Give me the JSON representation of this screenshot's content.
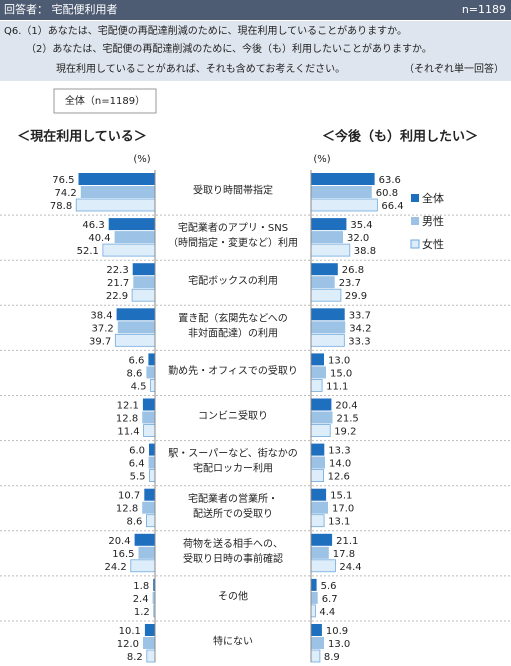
{
  "header": {
    "respondents": "回答者： 宅配便利用者",
    "n": "n=1189",
    "question": [
      "Q6.（1）あなたは、宅配便の再配達削減のために、現在利用していることがありますか。",
      "（2）あなたは、宅配便の再配達削減のために、今後（も）利用したいことがありますか。",
      "現在利用していることがあれば、それも含めてお考えください。"
    ],
    "note": "（それぞれ単一回答）",
    "base": "全体（n=1189）"
  },
  "chart_data": [
    {
      "type": "bar",
      "orientation": "horizontal",
      "direction": "left",
      "title": "＜現在利用している＞",
      "unit": "(%)",
      "xlim": [
        0,
        100
      ],
      "categories": [
        [
          "受取り時間帯指定"
        ],
        [
          "宅配業者のアプリ・SNS",
          "（時間指定・変更など）利用"
        ],
        [
          "宅配ボックスの利用"
        ],
        [
          "置き配（玄関先などへの",
          "非対面配達）の利用"
        ],
        [
          "勤め先・オフィスでの受取り"
        ],
        [
          "コンビニ受取り"
        ],
        [
          "駅・スーパーなど、街なかの",
          "宅配ロッカー利用"
        ],
        [
          "宅配業者の営業所・",
          "配送所での受取り"
        ],
        [
          "荷物を送る相手への、",
          "受取り日時の事前確認"
        ],
        [
          "その他"
        ],
        [
          "特にない"
        ]
      ],
      "series": [
        {
          "name": "全体",
          "color": "#1f6fbf",
          "values": [
            76.5,
            46.3,
            22.3,
            38.4,
            6.6,
            12.1,
            6.0,
            10.7,
            20.4,
            1.8,
            10.1
          ],
          "value_labels": [
            "76.5",
            "46.3",
            "22.3",
            "38.4",
            "6.6",
            "12.1",
            "6.0",
            "10.7",
            "20.4",
            "1.8",
            "10.1"
          ]
        },
        {
          "name": "男性",
          "color": "#9cc3e6",
          "values": [
            74.2,
            40.4,
            21.7,
            37.2,
            8.6,
            12.8,
            6.4,
            12.8,
            16.5,
            2.4,
            12.0
          ],
          "value_labels": [
            "74.2",
            "40.4",
            "21.7",
            "37.2",
            "8.6",
            "12.8",
            "6.4",
            "12.8",
            "16.5",
            "2.4",
            "12.0"
          ]
        },
        {
          "name": "女性",
          "color": "#ddeefa",
          "values": [
            78.8,
            52.1,
            22.9,
            39.7,
            4.5,
            11.4,
            5.5,
            8.6,
            24.2,
            1.2,
            8.2
          ],
          "value_labels": [
            "78.8",
            "52.1",
            "22.9",
            "39.7",
            "4.5",
            "11.4",
            "5.5",
            "8.6",
            "24.2",
            "1.2",
            "8.2"
          ]
        }
      ]
    },
    {
      "type": "bar",
      "orientation": "horizontal",
      "direction": "right",
      "title": "＜今後（も）利用したい＞",
      "unit": "(%)",
      "xlim": [
        0,
        100
      ],
      "series": [
        {
          "values": [
            63.6,
            35.4,
            26.8,
            33.7,
            13.0,
            20.4,
            13.3,
            15.1,
            21.1,
            5.6,
            10.9
          ],
          "value_labels": [
            "63.6",
            "35.4",
            "26.8",
            "33.7",
            "13.0",
            "20.4",
            "13.3",
            "15.1",
            "21.1",
            "5.6",
            "10.9"
          ]
        },
        {
          "values": [
            60.8,
            32.0,
            23.7,
            34.2,
            15.0,
            21.5,
            14.0,
            17.0,
            17.8,
            6.7,
            13.0
          ],
          "value_labels": [
            "60.8",
            "32.0",
            "23.7",
            "34.2",
            "15.0",
            "21.5",
            "14.0",
            "17.0",
            "17.8",
            "6.7",
            "13.0"
          ]
        },
        {
          "values": [
            66.4,
            38.8,
            29.9,
            33.3,
            11.1,
            19.2,
            12.6,
            13.1,
            24.4,
            4.4,
            8.9
          ],
          "value_labels": [
            "66.4",
            "38.8",
            "29.9",
            "33.3",
            "11.1",
            "19.2",
            "12.6",
            "13.1",
            "24.4",
            "4.4",
            "8.9"
          ]
        }
      ]
    }
  ]
}
